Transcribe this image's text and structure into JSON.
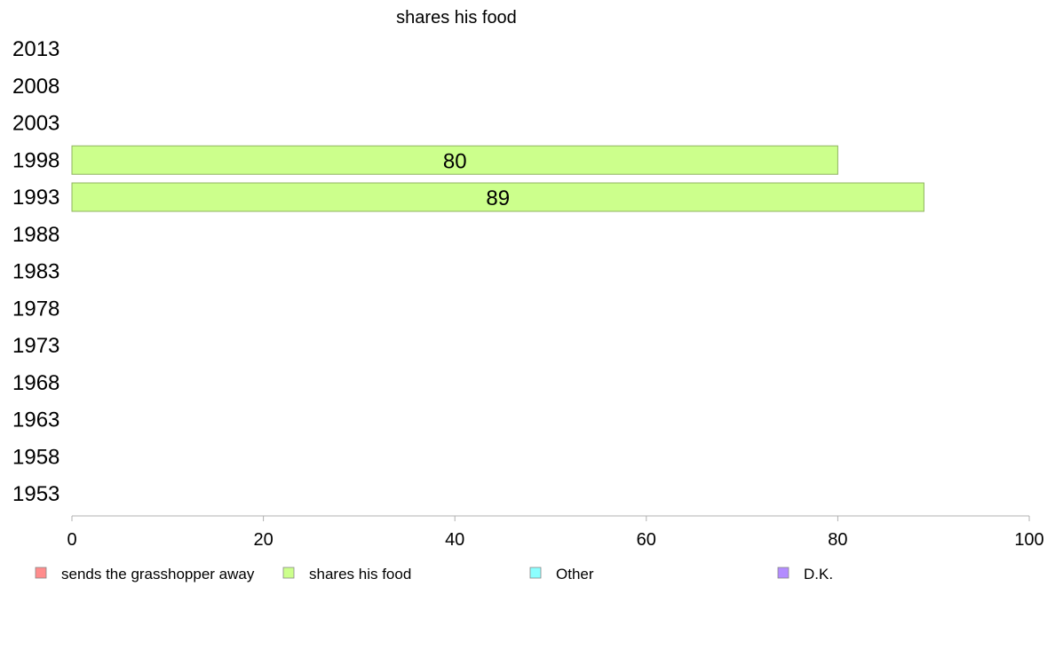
{
  "chart_data": {
    "type": "bar",
    "orientation": "horizontal",
    "title": "shares his food",
    "xlabel": "",
    "ylabel": "",
    "categories": [
      "2013",
      "2008",
      "2003",
      "1998",
      "1993",
      "1988",
      "1983",
      "1978",
      "1973",
      "1968",
      "1963",
      "1958",
      "1953"
    ],
    "series": [
      {
        "name": "shares his food",
        "values": [
          null,
          null,
          null,
          80,
          89,
          null,
          null,
          null,
          null,
          null,
          null,
          null,
          null
        ]
      }
    ],
    "data_labels": [
      null,
      null,
      null,
      "80",
      "89",
      null,
      null,
      null,
      null,
      null,
      null,
      null,
      null
    ],
    "xlim": [
      0,
      100
    ],
    "xticks": [
      "0",
      "20",
      "40",
      "60",
      "80",
      "100"
    ],
    "grid": false,
    "legend_position": "bottom",
    "legend": [
      {
        "label": "sends the grasshopper away",
        "color": "#ff8c8c"
      },
      {
        "label": "shares his food",
        "color": "#ccff8c"
      },
      {
        "label": "Other",
        "color": "#8cffff"
      },
      {
        "label": "D.K.",
        "color": "#b38cff"
      }
    ],
    "bar_color": "#ccff8c",
    "bar_border_color": "#8fb360",
    "axis_color": "#b0b0b0"
  }
}
